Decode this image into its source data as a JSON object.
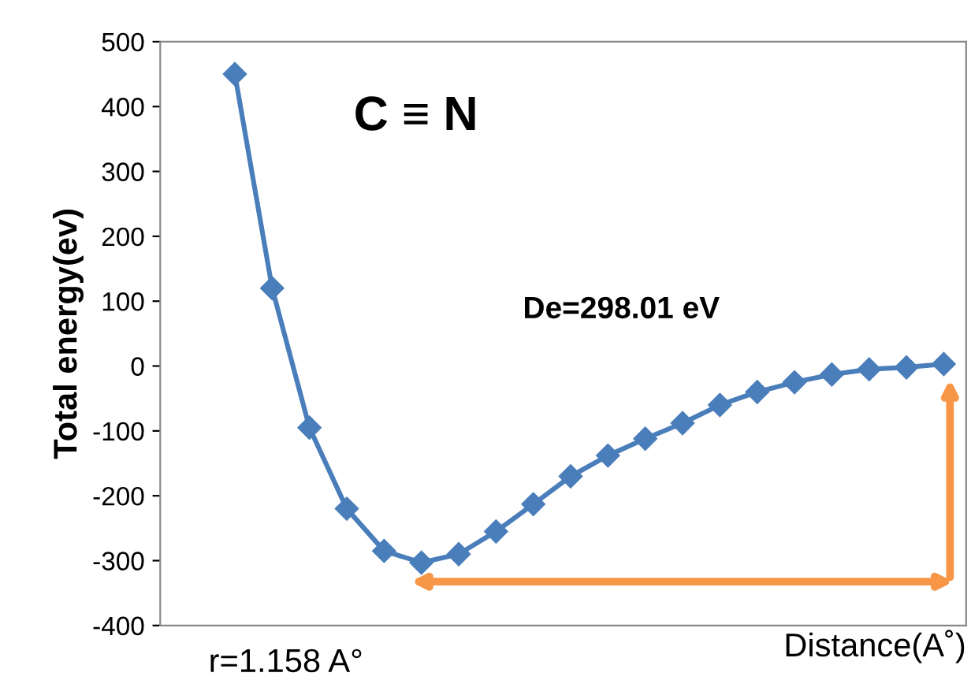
{
  "chart_data": {
    "type": "line",
    "ylabel": "Total energy(ev)",
    "xlabel": "Distance(A˚)",
    "categories": [
      null,
      null,
      null,
      null,
      null,
      null,
      null,
      null,
      null,
      null,
      null,
      null,
      null,
      null,
      null,
      null,
      null,
      null,
      null,
      null
    ],
    "series": [
      {
        "color": "#4a7ebb",
        "values": [
          450,
          120,
          -95,
          -220,
          -285,
          -303,
          -290,
          -255,
          -213,
          -170,
          -138,
          -112,
          -88,
          -60,
          -40,
          -25,
          -13,
          -5,
          -2,
          3
        ]
      }
    ],
    "ylim": [
      -400,
      500
    ],
    "yticks": [
      -400,
      -300,
      -200,
      -100,
      0,
      100,
      200,
      300,
      400,
      500
    ],
    "marker": "diamond",
    "line_style": "solid",
    "grid": false,
    "legend": false,
    "tick_labels": "y",
    "annotations": [
      "C ≡ N",
      "De=298.01 eV",
      "r=1.158 A°"
    ]
  }
}
